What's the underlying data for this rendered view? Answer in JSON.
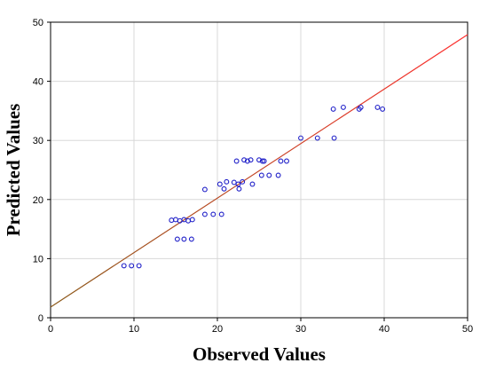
{
  "chart_data": {
    "type": "scatter",
    "title": "",
    "xlabel": "Observed Values",
    "ylabel": "Predicted Values",
    "xlim": [
      0,
      50
    ],
    "ylim": [
      0,
      50
    ],
    "xticks": [
      0,
      10,
      20,
      30,
      40,
      50
    ],
    "yticks": [
      0,
      10,
      20,
      30,
      40,
      50
    ],
    "grid": true,
    "marker_color": "#1f1fc8",
    "fit_line": {
      "x": [
        0,
        50
      ],
      "y": [
        1.8,
        47.9
      ],
      "color_start": "#8b5a1a",
      "color_end": "#ff3030"
    },
    "series": [
      {
        "values": [
          [
            8.8,
            8.8
          ],
          [
            9.7,
            8.8
          ],
          [
            10.6,
            8.8
          ],
          [
            14.5,
            16.5
          ],
          [
            15.0,
            16.6
          ],
          [
            15.5,
            16.4
          ],
          [
            16.0,
            16.6
          ],
          [
            16.5,
            16.4
          ],
          [
            17.0,
            16.6
          ],
          [
            15.2,
            13.3
          ],
          [
            16.0,
            13.3
          ],
          [
            16.9,
            13.3
          ],
          [
            18.5,
            21.7
          ],
          [
            18.5,
            17.5
          ],
          [
            19.5,
            17.5
          ],
          [
            20.5,
            17.5
          ],
          [
            20.3,
            22.6
          ],
          [
            20.8,
            21.8
          ],
          [
            21.1,
            23.0
          ],
          [
            22.0,
            22.9
          ],
          [
            22.3,
            26.5
          ],
          [
            22.5,
            22.6
          ],
          [
            22.6,
            21.8
          ],
          [
            23.0,
            23.0
          ],
          [
            23.2,
            26.7
          ],
          [
            23.6,
            26.5
          ],
          [
            24.0,
            26.7
          ],
          [
            24.2,
            22.6
          ],
          [
            25.0,
            26.7
          ],
          [
            25.3,
            24.1
          ],
          [
            25.4,
            26.5
          ],
          [
            25.6,
            26.5
          ],
          [
            26.2,
            24.1
          ],
          [
            27.3,
            24.1
          ],
          [
            27.6,
            26.5
          ],
          [
            28.3,
            26.5
          ],
          [
            30.0,
            30.4
          ],
          [
            32.0,
            30.4
          ],
          [
            34.0,
            30.4
          ],
          [
            33.9,
            35.3
          ],
          [
            35.1,
            35.6
          ],
          [
            37.0,
            35.3
          ],
          [
            37.2,
            35.6
          ],
          [
            39.2,
            35.6
          ],
          [
            39.8,
            35.3
          ]
        ]
      }
    ]
  }
}
